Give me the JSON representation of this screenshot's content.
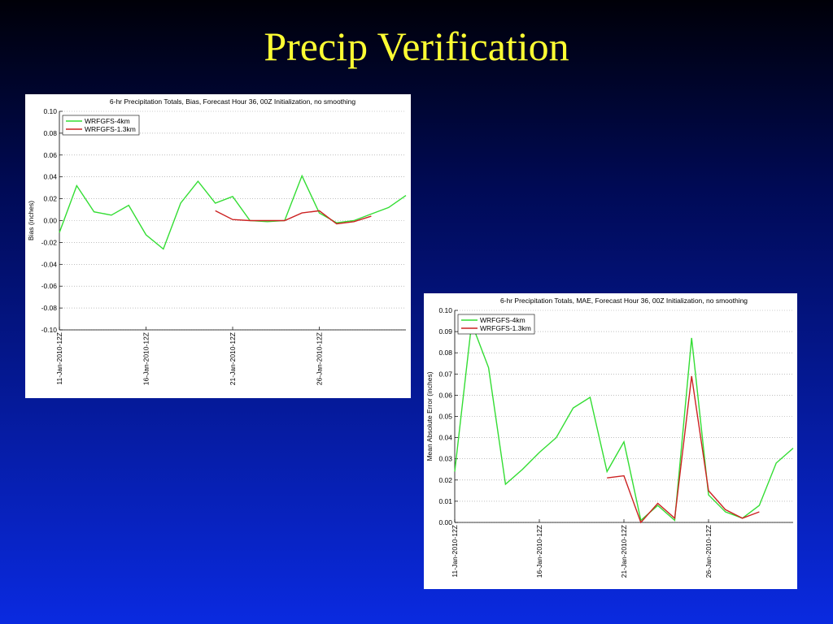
{
  "title": "Precip Verification",
  "chart_data": [
    {
      "type": "line",
      "title": "6-hr Precipitation Totals, Bias, Forecast Hour 36, 00Z Initialization, no smoothing",
      "y_label": "Bias (inches)",
      "categories": [
        "11-Jan-2010-12Z",
        null,
        null,
        null,
        null,
        "16-Jan-2010-12Z",
        null,
        null,
        null,
        null,
        "21-Jan-2010-12Z",
        null,
        null,
        null,
        null,
        "26-Jan-2010-12Z",
        null,
        null,
        null,
        null,
        null
      ],
      "series": [
        {
          "name": "WRFGFS-4km",
          "color": "#33dd33",
          "values": [
            -0.011,
            0.032,
            0.008,
            0.005,
            0.014,
            -0.013,
            -0.026,
            0.016,
            0.036,
            0.016,
            0.022,
            0.0,
            -0.001,
            0.0,
            0.041,
            0.007,
            -0.002,
            0.0,
            0.006,
            0.012,
            0.023
          ]
        },
        {
          "name": "WRFGFS-1.3km",
          "color": "#cc2222",
          "values": [
            null,
            null,
            null,
            null,
            null,
            null,
            null,
            null,
            null,
            0.009,
            0.001,
            0.0,
            0.0,
            0.0,
            0.007,
            0.009,
            -0.003,
            -0.001,
            0.004,
            null,
            null
          ]
        }
      ],
      "ylim": [
        -0.1,
        0.1
      ],
      "yticks": [
        {
          "value": -0.1,
          "label": "-0.10"
        },
        {
          "value": -0.08,
          "label": "-0.08"
        },
        {
          "value": -0.06,
          "label": "-0.06"
        },
        {
          "value": -0.04,
          "label": "-0.04"
        },
        {
          "value": -0.02,
          "label": "-0.02"
        },
        {
          "value": 0,
          "label": "0.00"
        },
        {
          "value": 0.02,
          "label": "0.02"
        },
        {
          "value": 0.04,
          "label": "0.04"
        },
        {
          "value": 0.06,
          "label": "0.06"
        },
        {
          "value": 0.08,
          "label": "0.08"
        },
        {
          "value": 0.1,
          "label": "0.10"
        }
      ],
      "grid": true,
      "legend": "upper left"
    },
    {
      "type": "line",
      "title": "6-hr Precipitation Totals, MAE, Forecast Hour 36, 00Z Initialization, no smoothing",
      "y_label": "Mean Absolute Error (inches)",
      "categories": [
        "11-Jan-2010-12Z",
        null,
        null,
        null,
        null,
        "16-Jan-2010-12Z",
        null,
        null,
        null,
        null,
        "21-Jan-2010-12Z",
        null,
        null,
        null,
        null,
        "26-Jan-2010-12Z",
        null,
        null,
        null,
        null,
        null
      ],
      "series": [
        {
          "name": "WRFGFS-4km",
          "color": "#33dd33",
          "values": [
            0.024,
            0.094,
            0.073,
            0.018,
            0.025,
            0.033,
            0.04,
            0.054,
            0.059,
            0.024,
            0.038,
            0.001,
            0.008,
            0.001,
            0.087,
            0.013,
            0.005,
            0.002,
            0.008,
            0.028,
            0.035
          ]
        },
        {
          "name": "WRFGFS-1.3km",
          "color": "#cc2222",
          "values": [
            null,
            null,
            null,
            null,
            null,
            null,
            null,
            null,
            null,
            0.021,
            0.022,
            0.0,
            0.009,
            0.002,
            0.069,
            0.015,
            0.006,
            0.002,
            0.005,
            null,
            null
          ]
        }
      ],
      "ylim": [
        0,
        0.1
      ],
      "yticks": [
        {
          "value": 0,
          "label": "0.00"
        },
        {
          "value": 0.01,
          "label": "0.01"
        },
        {
          "value": 0.02,
          "label": "0.02"
        },
        {
          "value": 0.03,
          "label": "0.03"
        },
        {
          "value": 0.04,
          "label": "0.04"
        },
        {
          "value": 0.05,
          "label": "0.05"
        },
        {
          "value": 0.06,
          "label": "0.06"
        },
        {
          "value": 0.07,
          "label": "0.07"
        },
        {
          "value": 0.08,
          "label": "0.08"
        },
        {
          "value": 0.09,
          "label": "0.09"
        },
        {
          "value": 0.1,
          "label": "0.10"
        }
      ],
      "grid": true,
      "legend": "upper left"
    }
  ]
}
